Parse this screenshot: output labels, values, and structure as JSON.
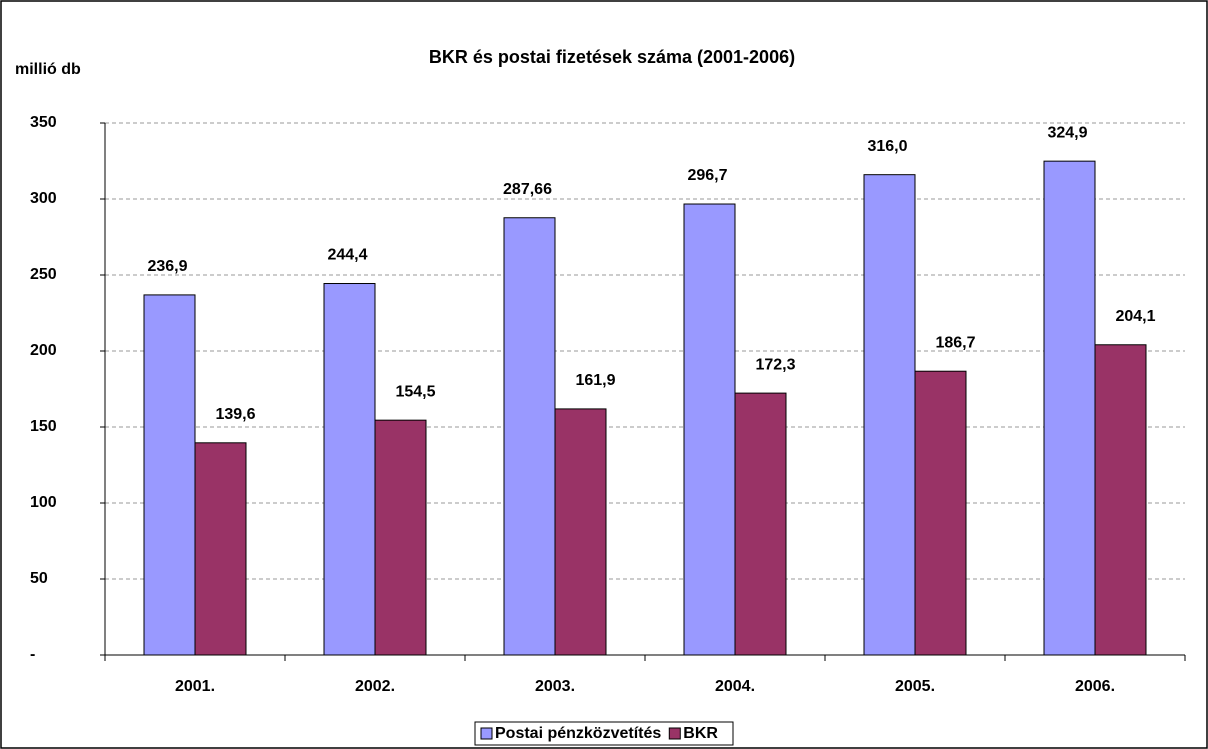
{
  "chart_data": {
    "type": "bar",
    "title": "BKR és postai fizetések száma (2001-2006)",
    "y_label": "millió db",
    "categories": [
      "2001.",
      "2002.",
      "2003.",
      "2004.",
      "2005.",
      "2006."
    ],
    "series": [
      {
        "name": "Postai pénzközvetítés",
        "color": "#9999ff",
        "values": [
          236.9,
          244.4,
          287.66,
          296.7,
          316.0,
          324.9
        ],
        "value_labels": [
          "236,9",
          "244,4",
          "287,66",
          "296,7",
          "316,0",
          "324,9"
        ]
      },
      {
        "name": "BKR",
        "color": "#993366",
        "values": [
          139.6,
          154.5,
          161.9,
          172.3,
          186.7,
          204.1
        ],
        "value_labels": [
          "139,6",
          "154,5",
          "161,9",
          "172,3",
          "186,7",
          "204,1"
        ]
      }
    ],
    "ylim": [
      0,
      350
    ],
    "yticks": [
      {
        "value": 0,
        "label": "-"
      },
      50,
      100,
      150,
      200,
      250,
      300,
      350
    ],
    "grid": true,
    "legend": "bottom"
  }
}
